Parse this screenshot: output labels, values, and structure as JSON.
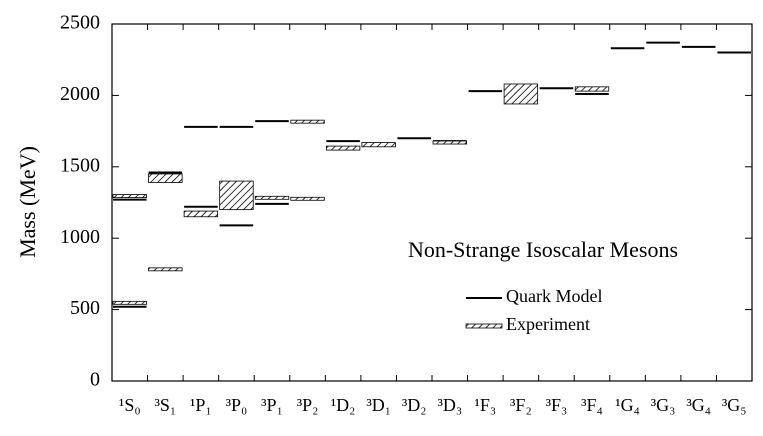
{
  "chart_data": {
    "type": "level-diagram",
    "annotation": "Non-Strange Isoscalar Mesons",
    "y_label": "Mass  (MeV)",
    "categories": [
      "¹S₀",
      "³S₁",
      "¹P₁",
      "³P₀",
      "³P₁",
      "³P₂",
      "¹D₂",
      "³D₁",
      "³D₂",
      "³D₃",
      "¹F₃",
      "³F₂",
      "³F₃",
      "³F₄",
      "¹G₄",
      "³G₃",
      "³G₄",
      "³G₅"
    ],
    "series": [
      {
        "name": "Quark Model",
        "color": "#000000",
        "style": "line",
        "values": [
          [
            520,
            1270
          ],
          [
            1460
          ],
          [
            1780,
            1220
          ],
          [
            1780,
            1090
          ],
          [
            1820,
            1240
          ],
          [],
          [
            1680
          ],
          [],
          [
            1700
          ],
          [
            1680
          ],
          [
            2030
          ],
          [],
          [
            2050
          ],
          [
            2010
          ],
          [
            2330
          ],
          [
            2370
          ],
          [
            2340
          ],
          [
            2300
          ]
        ]
      },
      {
        "name": "Experiment",
        "color": "#000000",
        "style": "hatched",
        "values": [
          [
            [
              540,
              555
            ],
            [
              1290,
              1300
            ]
          ],
          [
            [
              1390,
              1450
            ],
            [
              778,
              786
            ]
          ],
          [
            [
              1150,
              1190
            ]
          ],
          [
            [
              1200,
              1400
            ]
          ],
          [
            [
              1280,
              1286
            ]
          ],
          [
            [
              1810,
              1822
            ],
            [
              1270,
              1282
            ]
          ],
          [
            [
              1617,
              1645
            ]
          ],
          [
            [
              1640,
              1670
            ]
          ],
          [],
          [
            [
              1660,
              1680
            ]
          ],
          [],
          [
            [
              1940,
              2080
            ]
          ],
          [],
          [
            [
              2030,
              2060
            ]
          ],
          [],
          [],
          [],
          []
        ]
      }
    ],
    "ylim": [
      0,
      2500
    ],
    "yticks": [
      0,
      500,
      1000,
      1500,
      2000,
      2500
    ]
  }
}
